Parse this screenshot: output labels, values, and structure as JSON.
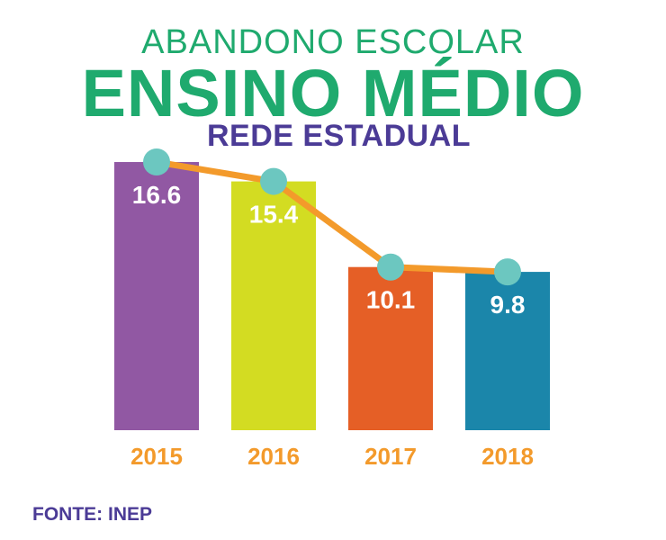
{
  "header": {
    "title_line1": "ABANDONO ESCOLAR",
    "title_line2": "ENSINO MÉDIO",
    "title_line3": "REDE ESTADUAL"
  },
  "footer": {
    "source": "FONTE: INEP"
  },
  "colors": {
    "title": "#1faa6e",
    "subtitle": "#4b3b96",
    "year_label": "#f39a2b",
    "line": "#f39a2b",
    "marker": "#6cc7c0"
  },
  "chart_data": {
    "type": "bar",
    "categories": [
      "2015",
      "2016",
      "2017",
      "2018"
    ],
    "values": [
      16.6,
      15.4,
      10.1,
      9.8
    ],
    "value_labels": [
      "16.6",
      "15.4",
      "10.1",
      "9.8"
    ],
    "bar_colors": [
      "#9158a3",
      "#d3dc22",
      "#e55f26",
      "#1b86aa"
    ],
    "overlay_line": true,
    "grid": false,
    "legend": "none",
    "title": "ENSINO MÉDIO",
    "xlabel": "",
    "ylabel": ""
  }
}
